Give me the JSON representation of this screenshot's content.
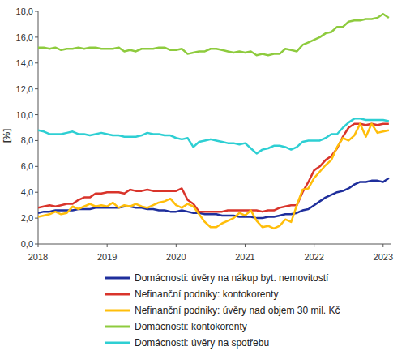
{
  "chart_data": {
    "type": "line",
    "y_label": "[%]",
    "x": [
      2018.0,
      2018.083,
      2018.167,
      2018.25,
      2018.333,
      2018.417,
      2018.5,
      2018.583,
      2018.667,
      2018.75,
      2018.833,
      2018.917,
      2019.0,
      2019.083,
      2019.167,
      2019.25,
      2019.333,
      2019.417,
      2019.5,
      2019.583,
      2019.667,
      2019.75,
      2019.833,
      2019.917,
      2020.0,
      2020.083,
      2020.167,
      2020.25,
      2020.333,
      2020.417,
      2020.5,
      2020.583,
      2020.667,
      2020.75,
      2020.833,
      2020.917,
      2021.0,
      2021.083,
      2021.167,
      2021.25,
      2021.333,
      2021.417,
      2021.5,
      2021.583,
      2021.667,
      2021.75,
      2021.833,
      2021.917,
      2022.0,
      2022.083,
      2022.167,
      2022.25,
      2022.333,
      2022.417,
      2022.5,
      2022.583,
      2022.667,
      2022.75,
      2022.833,
      2022.917,
      2023.0,
      2023.083
    ],
    "series": [
      {
        "name": "Domácnosti: úvěry na nákup byt. nemovitostí",
        "color": "#1f2f9c",
        "values": [
          2.4,
          2.5,
          2.5,
          2.6,
          2.6,
          2.6,
          2.6,
          2.7,
          2.7,
          2.7,
          2.8,
          2.8,
          2.8,
          2.8,
          2.8,
          2.9,
          2.9,
          2.8,
          2.8,
          2.7,
          2.7,
          2.6,
          2.6,
          2.5,
          2.5,
          2.6,
          2.5,
          2.4,
          2.4,
          2.3,
          2.3,
          2.3,
          2.2,
          2.2,
          2.2,
          2.1,
          2.1,
          2.1,
          2.0,
          2.0,
          2.1,
          2.1,
          2.2,
          2.3,
          2.3,
          2.4,
          2.6,
          2.7,
          3.0,
          3.3,
          3.6,
          3.8,
          4.0,
          4.1,
          4.3,
          4.6,
          4.8,
          4.8,
          4.9,
          4.9,
          4.8,
          5.1
        ]
      },
      {
        "name": "Nefinanční podniky: kontokorenty",
        "color": "#d9342b",
        "values": [
          2.8,
          2.9,
          3.0,
          2.9,
          3.0,
          3.1,
          3.1,
          3.4,
          3.6,
          3.6,
          3.9,
          3.9,
          4.0,
          4.0,
          4.0,
          3.9,
          4.2,
          4.1,
          4.1,
          4.2,
          4.1,
          4.1,
          4.1,
          4.1,
          4.1,
          4.3,
          3.4,
          3.1,
          2.5,
          2.5,
          2.5,
          2.5,
          2.5,
          2.6,
          2.6,
          2.6,
          2.6,
          2.6,
          2.6,
          2.5,
          2.6,
          2.6,
          2.8,
          2.9,
          3.0,
          3.0,
          4.0,
          4.8,
          5.7,
          6.0,
          6.5,
          6.8,
          7.4,
          8.3,
          9.0,
          9.3,
          9.3,
          9.2,
          9.3,
          9.2,
          9.3,
          9.3
        ]
      },
      {
        "name": "Nefinanční podniky: úvěry nad objem 30 mil. Kč",
        "color": "#ffbe0b",
        "values": [
          2.1,
          2.2,
          2.3,
          2.5,
          2.3,
          2.4,
          2.9,
          2.7,
          2.9,
          3.1,
          2.9,
          3.0,
          2.9,
          3.2,
          2.8,
          3.0,
          2.9,
          3.1,
          2.9,
          2.8,
          3.0,
          3.2,
          3.3,
          3.5,
          3.0,
          2.8,
          3.1,
          2.9,
          2.3,
          1.7,
          1.3,
          1.3,
          1.6,
          1.8,
          2.0,
          2.4,
          2.2,
          2.6,
          1.8,
          1.3,
          1.4,
          1.2,
          1.4,
          1.9,
          1.7,
          3.0,
          4.2,
          4.3,
          5.1,
          5.6,
          6.1,
          6.5,
          7.5,
          8.2,
          8.0,
          8.4,
          9.3,
          8.3,
          9.3,
          8.6,
          8.7,
          8.8
        ]
      },
      {
        "name": "Domácnosti: kontokorenty",
        "color": "#8ecb3e",
        "values": [
          15.2,
          15.2,
          15.1,
          15.2,
          15.0,
          15.1,
          15.1,
          15.2,
          15.1,
          15.2,
          15.2,
          15.1,
          15.1,
          15.1,
          15.2,
          14.9,
          15.0,
          14.9,
          15.1,
          15.1,
          15.1,
          15.2,
          15.2,
          15.0,
          15.0,
          15.1,
          14.7,
          14.8,
          14.9,
          14.9,
          15.1,
          15.1,
          15.0,
          14.9,
          14.8,
          14.9,
          14.8,
          14.9,
          14.6,
          14.7,
          14.6,
          14.7,
          14.7,
          15.1,
          15.0,
          14.9,
          15.4,
          15.6,
          15.8,
          16.0,
          16.3,
          16.4,
          16.8,
          16.8,
          17.2,
          17.3,
          17.3,
          17.4,
          17.4,
          17.5,
          17.8,
          17.5
        ]
      },
      {
        "name": "Domácnosti: úvěry na spotřebu",
        "color": "#2ecfd3",
        "values": [
          8.8,
          8.7,
          8.5,
          8.5,
          8.5,
          8.6,
          8.7,
          8.5,
          8.5,
          8.4,
          8.5,
          8.6,
          8.5,
          8.4,
          8.4,
          8.3,
          8.3,
          8.3,
          8.4,
          8.6,
          8.5,
          8.5,
          8.4,
          8.4,
          8.2,
          8.1,
          8.2,
          7.5,
          7.9,
          8.0,
          8.1,
          8.0,
          7.9,
          7.8,
          7.8,
          7.7,
          7.8,
          7.4,
          7.0,
          7.3,
          7.4,
          7.6,
          7.6,
          7.5,
          7.3,
          7.5,
          7.9,
          8.0,
          8.0,
          8.0,
          8.2,
          8.5,
          8.5,
          9.0,
          9.4,
          9.7,
          9.7,
          9.6,
          9.6,
          9.6,
          9.6,
          9.5
        ]
      }
    ],
    "xlim": [
      2018,
      2023.12
    ],
    "xticks": [
      2018,
      2019,
      2020,
      2021,
      2022,
      2023
    ],
    "ylim": [
      0,
      18
    ],
    "yticks": [
      {
        "value": 0,
        "label": "0,0"
      },
      {
        "value": 2,
        "label": "2,0"
      },
      {
        "value": 4,
        "label": "4,0"
      },
      {
        "value": 6,
        "label": "6,0"
      },
      {
        "value": 8,
        "label": "8,0"
      },
      {
        "value": 10,
        "label": "10,0"
      },
      {
        "value": 12,
        "label": "12,0"
      },
      {
        "value": 14,
        "label": "14,0"
      },
      {
        "value": 16,
        "label": "16,0"
      },
      {
        "value": 18,
        "label": "18,0"
      }
    ],
    "grid": false,
    "legend": "bottom"
  }
}
